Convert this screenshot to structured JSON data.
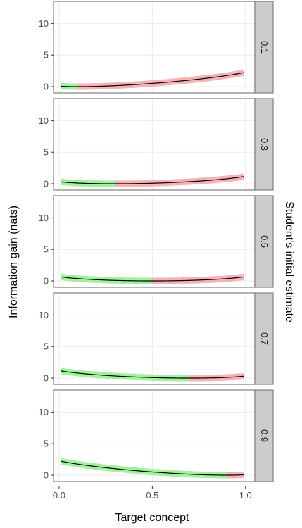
{
  "chart_data": {
    "type": "line",
    "xlabel": "Target concept",
    "ylabel": "Information gain (nats)",
    "facet_label": "Student's initial estimate",
    "xlim": [
      -0.03,
      1.05
    ],
    "ylim": [
      -1,
      13.5
    ],
    "x_ticks": [
      "0.0",
      "0.5",
      "1.0"
    ],
    "x_tick_values": [
      0,
      0.5,
      1
    ],
    "y_ticks": [
      "0",
      "5",
      "10"
    ],
    "y_tick_values": [
      0,
      5,
      10
    ],
    "grid": true,
    "colors": {
      "line": "#000000",
      "below_estimate": "#90ee90",
      "above_estimate": "#f4a4a8",
      "panel_border": "#7f7f7f",
      "strip_fill": "#cccccc"
    },
    "panels": [
      {
        "label": "0.1",
        "initial_estimate": 0.1
      },
      {
        "label": "0.3",
        "initial_estimate": 0.3
      },
      {
        "label": "0.5",
        "initial_estimate": 0.5
      },
      {
        "label": "0.7",
        "initial_estimate": 0.7
      },
      {
        "label": "0.9",
        "initial_estimate": 0.9
      }
    ],
    "x_range": [
      0.01,
      0.99
    ]
  }
}
